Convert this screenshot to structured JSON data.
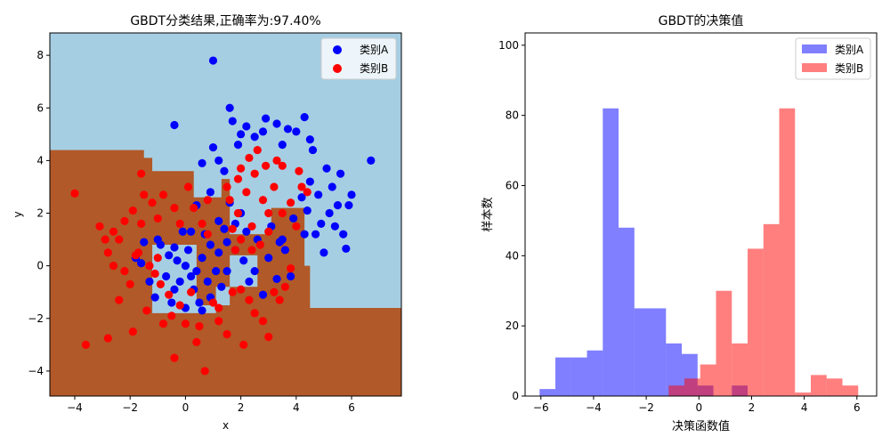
{
  "chart_data": [
    {
      "type": "scatter",
      "title": "GBDT分类结果,正确率为:97.40%",
      "xlabel": "x",
      "ylabel": "y",
      "xlim": [
        -4.9,
        7.8
      ],
      "ylim": [
        -4.95,
        8.85
      ],
      "xticks": [
        -4,
        -2,
        0,
        2,
        4,
        6
      ],
      "yticks": [
        -4,
        -2,
        0,
        2,
        4,
        6,
        8
      ],
      "legend_position": "top-right",
      "background_colors": {
        "region_A": "#a6cee3",
        "region_B": "#b15928"
      },
      "decision_region_B": [
        [
          -4.9,
          4.4
        ],
        [
          -1.5,
          4.4
        ],
        [
          -1.5,
          4.1
        ],
        [
          -1.2,
          4.1
        ],
        [
          -1.2,
          3.6
        ],
        [
          0.3,
          3.6
        ],
        [
          0.3,
          2.6
        ],
        [
          1.3,
          2.6
        ],
        [
          1.3,
          3.3
        ],
        [
          1.6,
          3.3
        ],
        [
          1.6,
          1.2
        ],
        [
          3.1,
          1.2
        ],
        [
          3.1,
          2.2
        ],
        [
          4.3,
          2.2
        ],
        [
          4.3,
          0.0
        ],
        [
          4.5,
          0.0
        ],
        [
          4.5,
          -1.6
        ],
        [
          7.8,
          -1.6
        ],
        [
          7.8,
          -4.95
        ],
        [
          -4.9,
          -4.95
        ]
      ],
      "region_A_cutouts": [
        [
          [
            -1.2,
            0.8
          ],
          [
            0.4,
            0.8
          ],
          [
            0.4,
            -1.5
          ],
          [
            1.6,
            -1.5
          ],
          [
            1.6,
            0.4
          ],
          [
            2.6,
            0.4
          ],
          [
            2.6,
            -0.8
          ],
          [
            1.1,
            -0.8
          ],
          [
            1.1,
            -1.8
          ],
          [
            -1.2,
            -1.8
          ]
        ]
      ],
      "series": [
        {
          "name": "类别A",
          "color": "#0000ff",
          "points": [
            [
              1.0,
              7.8
            ],
            [
              -0.4,
              5.35
            ],
            [
              1.6,
              6.0
            ],
            [
              1.7,
              5.5
            ],
            [
              2.2,
              5.3
            ],
            [
              2.9,
              5.6
            ],
            [
              3.3,
              5.4
            ],
            [
              4.0,
              5.1
            ],
            [
              4.3,
              5.65
            ],
            [
              6.7,
              4.0
            ],
            [
              6.0,
              2.7
            ],
            [
              5.5,
              2.3
            ],
            [
              5.7,
              1.2
            ],
            [
              5.8,
              0.65
            ],
            [
              5.0,
              0.5
            ],
            [
              4.9,
              1.6
            ],
            [
              4.3,
              1.2
            ],
            [
              3.6,
              0.6
            ],
            [
              3.8,
              -0.4
            ],
            [
              2.8,
              -1.1
            ],
            [
              2.3,
              -0.6
            ],
            [
              1.5,
              0.9
            ],
            [
              1.8,
              1.6
            ],
            [
              0.9,
              2.8
            ],
            [
              0.4,
              2.3
            ],
            [
              1.2,
              1.7
            ],
            [
              1.9,
              4.6
            ],
            [
              2.5,
              4.9
            ],
            [
              3.5,
              4.6
            ],
            [
              4.6,
              4.4
            ],
            [
              5.1,
              3.7
            ],
            [
              5.3,
              3.0
            ],
            [
              4.8,
              2.7
            ],
            [
              5.2,
              2.0
            ],
            [
              4.5,
              3.2
            ],
            [
              3.9,
              1.8
            ],
            [
              3.1,
              1.5
            ],
            [
              2.6,
              1.0
            ],
            [
              1.0,
              4.5
            ],
            [
              0.6,
              3.9
            ],
            [
              1.2,
              4.0
            ],
            [
              2.0,
              5.0
            ],
            [
              2.8,
              5.1
            ],
            [
              3.7,
              5.2
            ],
            [
              4.5,
              4.8
            ],
            [
              5.6,
              3.5
            ],
            [
              5.9,
              2.3
            ],
            [
              4.2,
              2.6
            ],
            [
              1.4,
              3.6
            ],
            [
              1.6,
              2.4
            ],
            [
              0.2,
              1.3
            ],
            [
              -0.6,
              0.4
            ],
            [
              -0.9,
              0.8
            ],
            [
              -1.3,
              -0.6
            ],
            [
              -1.6,
              0.1
            ],
            [
              -1.1,
              -1.2
            ],
            [
              -0.5,
              -1.4
            ],
            [
              0.0,
              -1.6
            ],
            [
              0.5,
              -1.4
            ],
            [
              0.9,
              -1.2
            ],
            [
              1.3,
              -0.8
            ],
            [
              1.1,
              -0.2
            ],
            [
              0.6,
              0.3
            ],
            [
              0.1,
              0.6
            ],
            [
              -0.3,
              0.2
            ],
            [
              -0.7,
              -0.4
            ],
            [
              -0.2,
              -0.6
            ],
            [
              0.3,
              -0.9
            ],
            [
              0.8,
              -0.6
            ],
            [
              0.0,
              0.0
            ],
            [
              -0.1,
              1.3
            ],
            [
              0.7,
              1.2
            ],
            [
              1.4,
              1.4
            ],
            [
              -1.0,
              1.0
            ],
            [
              -1.5,
              0.9
            ],
            [
              -1.8,
              0.3
            ],
            [
              -0.4,
              -0.9
            ],
            [
              0.4,
              -0.2
            ],
            [
              1.2,
              0.5
            ],
            [
              0.6,
              -1.7
            ],
            [
              2.1,
              0.2
            ],
            [
              2.5,
              -0.2
            ],
            [
              3.0,
              0.3
            ],
            [
              3.4,
              0.9
            ],
            [
              3.3,
              -0.5
            ],
            [
              1.8,
              0.6
            ],
            [
              2.2,
              1.3
            ],
            [
              0.2,
              -0.4
            ],
            [
              -0.4,
              0.7
            ],
            [
              0.9,
              0.8
            ],
            [
              1.5,
              -0.2
            ],
            [
              2.0,
              2.0
            ],
            [
              3.5,
              1.0
            ],
            [
              4.4,
              2.1
            ],
            [
              4.7,
              1.2
            ],
            [
              5.4,
              1.5
            ]
          ]
        },
        {
          "name": "类别B",
          "color": "#ff0000",
          "points": [
            [
              -4.0,
              2.75
            ],
            [
              -3.6,
              -3.0
            ],
            [
              -2.8,
              -2.75
            ],
            [
              -2.8,
              0.5
            ],
            [
              -2.6,
              1.3
            ],
            [
              -2.4,
              -1.3
            ],
            [
              -2.0,
              -0.7
            ],
            [
              -1.9,
              -2.5
            ],
            [
              -1.8,
              0.4
            ],
            [
              -1.6,
              1.6
            ],
            [
              -1.5,
              2.7
            ],
            [
              -1.6,
              3.5
            ],
            [
              -1.2,
              2.4
            ],
            [
              -1.0,
              1.8
            ],
            [
              -0.8,
              2.7
            ],
            [
              -0.4,
              2.2
            ],
            [
              -0.5,
              -1.9
            ],
            [
              -0.6,
              -1.1
            ],
            [
              -0.4,
              -3.5
            ],
            [
              0.0,
              -2.2
            ],
            [
              0.4,
              -2.9
            ],
            [
              0.7,
              -4.0
            ],
            [
              1.2,
              -2.1
            ],
            [
              1.2,
              -1.6
            ],
            [
              1.7,
              -1.0
            ],
            [
              2.0,
              -0.9
            ],
            [
              2.5,
              -1.8
            ],
            [
              2.8,
              -2.1
            ],
            [
              3.0,
              -2.7
            ],
            [
              2.1,
              -3.0
            ],
            [
              3.4,
              -1.3
            ],
            [
              3.8,
              -0.1
            ],
            [
              3.6,
              -0.8
            ],
            [
              1.8,
              0.6
            ],
            [
              2.4,
              0.6
            ],
            [
              2.0,
              1.0
            ],
            [
              2.7,
              0.8
            ],
            [
              3.0,
              1.3
            ],
            [
              2.4,
              1.5
            ],
            [
              0.1,
              3.0
            ],
            [
              -0.2,
              1.6
            ],
            [
              0.6,
              1.6
            ],
            [
              0.3,
              2.2
            ],
            [
              0.8,
              1.2
            ],
            [
              1.6,
              2.5
            ],
            [
              1.9,
              3.3
            ],
            [
              2.2,
              2.8
            ],
            [
              2.5,
              3.5
            ],
            [
              2.8,
              2.5
            ],
            [
              3.2,
              3.0
            ],
            [
              3.5,
              3.8
            ],
            [
              3.8,
              2.4
            ],
            [
              4.2,
              3.0
            ],
            [
              4.0,
              1.5
            ],
            [
              3.5,
              2.0
            ],
            [
              2.9,
              3.8
            ],
            [
              2.3,
              4.1
            ],
            [
              1.9,
              2.0
            ],
            [
              1.5,
              3.0
            ],
            [
              4.1,
              3.6
            ],
            [
              3.0,
              2.0
            ],
            [
              2.6,
              4.4
            ],
            [
              3.3,
              4.0
            ],
            [
              4.4,
              2.8
            ],
            [
              2.0,
              3.7
            ],
            [
              1.7,
              1.4
            ],
            [
              -2.4,
              1.0
            ],
            [
              -2.2,
              1.7
            ],
            [
              -1.7,
              0.5
            ],
            [
              -1.3,
              0.0
            ],
            [
              -0.9,
              -0.7
            ],
            [
              -1.4,
              -1.7
            ],
            [
              -0.8,
              -2.2
            ],
            [
              -2.2,
              -0.2
            ],
            [
              -0.2,
              -1.5
            ],
            [
              0.5,
              -2.3
            ],
            [
              1.0,
              -1.4
            ],
            [
              1.5,
              -2.6
            ],
            [
              2.3,
              -1.3
            ],
            [
              3.2,
              -1.0
            ],
            [
              -3.1,
              1.5
            ],
            [
              -2.6,
              0.0
            ],
            [
              -1.0,
              0.3
            ],
            [
              0.8,
              2.5
            ],
            [
              -1.9,
              2.1
            ],
            [
              -2.9,
              1.0
            ],
            [
              -1.1,
              -0.3
            ],
            [
              0.2,
              -1.0
            ]
          ]
        }
      ]
    },
    {
      "type": "histogram",
      "title": "GBDT的决策值",
      "xlabel": "决策函数值",
      "ylabel": "样本数",
      "xlim": [
        -6.6,
        6.75
      ],
      "ylim": [
        0,
        103.5
      ],
      "xticks": [
        -6,
        -4,
        -2,
        0,
        2,
        4,
        6
      ],
      "yticks": [
        0,
        20,
        40,
        60,
        80,
        100
      ],
      "legend_position": "top-right",
      "series": [
        {
          "name": "类别A",
          "color": "#0000ff",
          "alpha": 0.5,
          "bins": [
            [
              -6.05,
              -5.45,
              2
            ],
            [
              -5.45,
              -4.85,
              11
            ],
            [
              -4.85,
              -4.25,
              11
            ],
            [
              -4.25,
              -3.65,
              13
            ],
            [
              -3.65,
              -3.05,
              82
            ],
            [
              -3.05,
              -2.45,
              48
            ],
            [
              -2.45,
              -1.85,
              25
            ],
            [
              -1.85,
              -1.25,
              25
            ],
            [
              -1.25,
              -0.65,
              15
            ],
            [
              -0.65,
              -0.05,
              12
            ],
            [
              -0.05,
              0.55,
              3
            ],
            [
              1.25,
              1.85,
              3
            ]
          ]
        },
        {
          "name": "类别B",
          "color": "#ff0000",
          "alpha": 0.5,
          "bins": [
            [
              -1.15,
              -0.55,
              3
            ],
            [
              -0.55,
              0.05,
              5
            ],
            [
              0.05,
              0.65,
              9
            ],
            [
              0.65,
              1.25,
              30
            ],
            [
              1.25,
              1.85,
              15
            ],
            [
              1.85,
              2.45,
              42
            ],
            [
              2.45,
              3.05,
              49
            ],
            [
              3.05,
              3.65,
              82
            ],
            [
              3.65,
              4.25,
              1
            ],
            [
              4.25,
              4.85,
              6
            ],
            [
              4.85,
              5.45,
              5
            ],
            [
              5.45,
              6.05,
              3
            ]
          ]
        }
      ]
    }
  ]
}
